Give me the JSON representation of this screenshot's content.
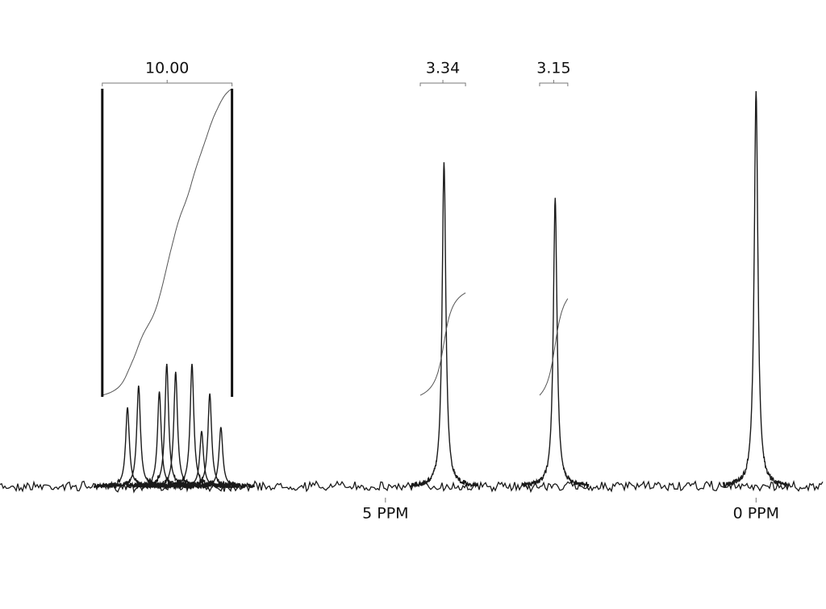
{
  "chart_data": {
    "type": "spectrum",
    "x": [
      8.48,
      8.33,
      8.05,
      7.95,
      7.83,
      7.61,
      7.48,
      7.37,
      7.22,
      4.21,
      2.71,
      0
    ],
    "values": [
      20,
      25.5,
      24,
      31,
      29,
      31,
      14,
      23.5,
      15,
      82,
      73,
      100
    ],
    "color": "#1a1a1a",
    "xlim": [
      10.2,
      -0.9
    ],
    "ylim": [
      0,
      100
    ],
    "xticks": [
      {
        "value": 5,
        "label": "5 PPM"
      },
      {
        "value": 0,
        "label": "0 PPM"
      }
    ],
    "integrals": [
      {
        "range": [
          8.82,
          7.07
        ],
        "value": {
          "value": 10,
          "label": "10.00"
        }
      },
      {
        "range": [
          4.53,
          3.92
        ],
        "value": 3.34
      },
      {
        "range": [
          2.92,
          2.54
        ],
        "value": 3.15
      }
    ]
  }
}
